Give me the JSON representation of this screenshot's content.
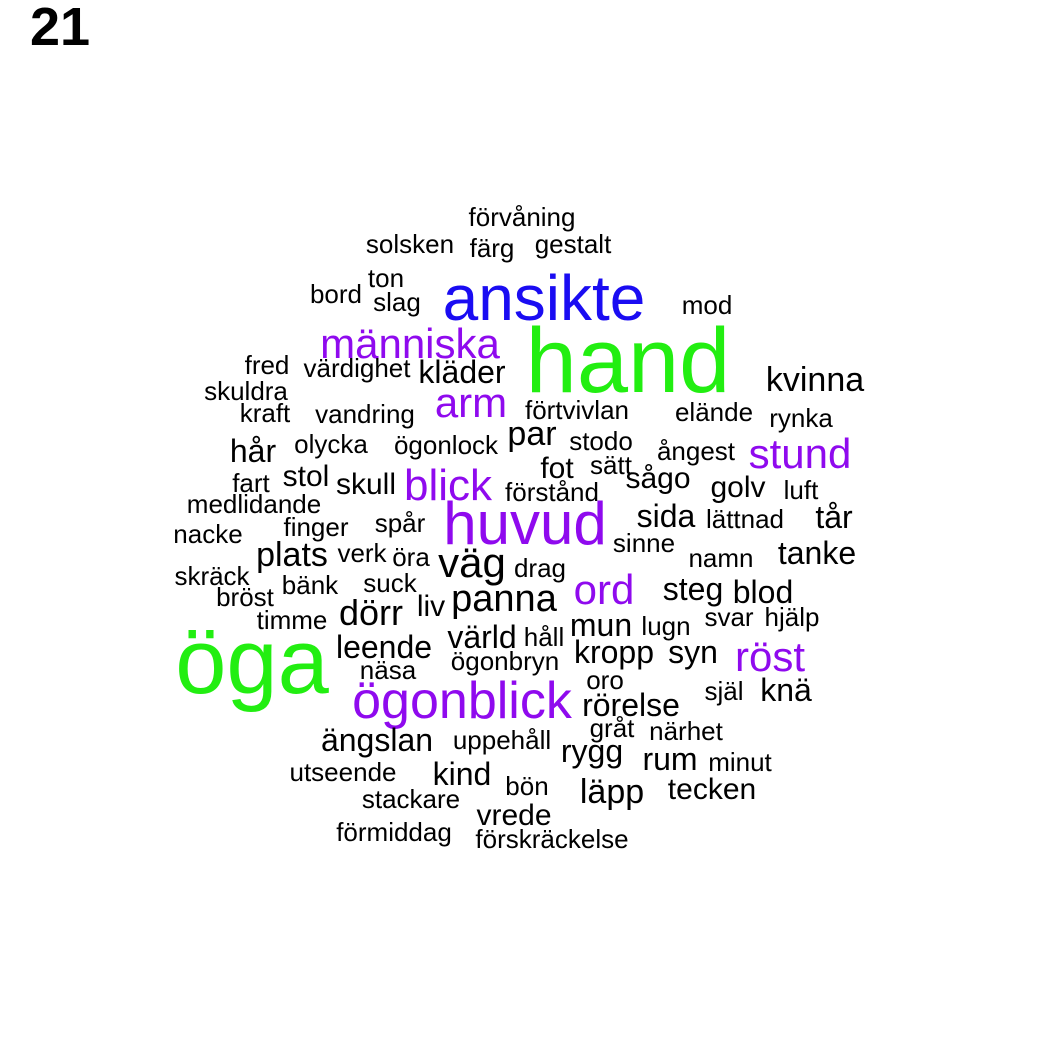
{
  "page_number": "21",
  "colors": {
    "green": "#22ee11",
    "blue": "#1a0cf2",
    "purple": "#8f0aee",
    "black": "#000000"
  },
  "words": [
    {
      "text": "hand",
      "color": "green"
    },
    {
      "text": "öga",
      "color": "green"
    },
    {
      "text": "ansikte",
      "color": "blue"
    },
    {
      "text": "människa",
      "color": "purple"
    },
    {
      "text": "arm",
      "color": "purple"
    },
    {
      "text": "huvud",
      "color": "purple"
    },
    {
      "text": "blick",
      "color": "purple"
    },
    {
      "text": "ögonblick",
      "color": "purple"
    },
    {
      "text": "stund",
      "color": "purple"
    },
    {
      "text": "ord",
      "color": "purple"
    },
    {
      "text": "röst",
      "color": "purple"
    },
    {
      "text": "förvåning",
      "color": "black"
    },
    {
      "text": "solsken",
      "color": "black"
    },
    {
      "text": "färg",
      "color": "black"
    },
    {
      "text": "gestalt",
      "color": "black"
    },
    {
      "text": "ton",
      "color": "black"
    },
    {
      "text": "bord",
      "color": "black"
    },
    {
      "text": "slag",
      "color": "black"
    },
    {
      "text": "mod",
      "color": "black"
    },
    {
      "text": "fred",
      "color": "black"
    },
    {
      "text": "värdighet",
      "color": "black"
    },
    {
      "text": "kläder",
      "color": "black"
    },
    {
      "text": "kvinna",
      "color": "black"
    },
    {
      "text": "skuldra",
      "color": "black"
    },
    {
      "text": "kraft",
      "color": "black"
    },
    {
      "text": "vandring",
      "color": "black"
    },
    {
      "text": "förtvivlan",
      "color": "black"
    },
    {
      "text": "elände",
      "color": "black"
    },
    {
      "text": "rynka",
      "color": "black"
    },
    {
      "text": "par",
      "color": "black"
    },
    {
      "text": "stodo",
      "color": "black"
    },
    {
      "text": "hår",
      "color": "black"
    },
    {
      "text": "olycka",
      "color": "black"
    },
    {
      "text": "ögonlock",
      "color": "black"
    },
    {
      "text": "ångest",
      "color": "black"
    },
    {
      "text": "fot",
      "color": "black"
    },
    {
      "text": "sätt",
      "color": "black"
    },
    {
      "text": "fart",
      "color": "black"
    },
    {
      "text": "stol",
      "color": "black"
    },
    {
      "text": "skull",
      "color": "black"
    },
    {
      "text": "sågo",
      "color": "black"
    },
    {
      "text": "golv",
      "color": "black"
    },
    {
      "text": "luft",
      "color": "black"
    },
    {
      "text": "medlidande",
      "color": "black"
    },
    {
      "text": "förstånd",
      "color": "black"
    },
    {
      "text": "sida",
      "color": "black"
    },
    {
      "text": "lättnad",
      "color": "black"
    },
    {
      "text": "tår",
      "color": "black"
    },
    {
      "text": "nacke",
      "color": "black"
    },
    {
      "text": "finger",
      "color": "black"
    },
    {
      "text": "spår",
      "color": "black"
    },
    {
      "text": "sinne",
      "color": "black"
    },
    {
      "text": "plats",
      "color": "black"
    },
    {
      "text": "verk",
      "color": "black"
    },
    {
      "text": "öra",
      "color": "black"
    },
    {
      "text": "väg",
      "color": "black"
    },
    {
      "text": "namn",
      "color": "black"
    },
    {
      "text": "tanke",
      "color": "black"
    },
    {
      "text": "skräck",
      "color": "black"
    },
    {
      "text": "drag",
      "color": "black"
    },
    {
      "text": "bänk",
      "color": "black"
    },
    {
      "text": "suck",
      "color": "black"
    },
    {
      "text": "steg",
      "color": "black"
    },
    {
      "text": "blod",
      "color": "black"
    },
    {
      "text": "bröst",
      "color": "black"
    },
    {
      "text": "liv",
      "color": "black"
    },
    {
      "text": "panna",
      "color": "black"
    },
    {
      "text": "dörr",
      "color": "black"
    },
    {
      "text": "timme",
      "color": "black"
    },
    {
      "text": "svar",
      "color": "black"
    },
    {
      "text": "hjälp",
      "color": "black"
    },
    {
      "text": "mun",
      "color": "black"
    },
    {
      "text": "lugn",
      "color": "black"
    },
    {
      "text": "värld",
      "color": "black"
    },
    {
      "text": "håll",
      "color": "black"
    },
    {
      "text": "leende",
      "color": "black"
    },
    {
      "text": "kropp",
      "color": "black"
    },
    {
      "text": "syn",
      "color": "black"
    },
    {
      "text": "ögonbryn",
      "color": "black"
    },
    {
      "text": "näsa",
      "color": "black"
    },
    {
      "text": "oro",
      "color": "black"
    },
    {
      "text": "själ",
      "color": "black"
    },
    {
      "text": "knä",
      "color": "black"
    },
    {
      "text": "rörelse",
      "color": "black"
    },
    {
      "text": "gråt",
      "color": "black"
    },
    {
      "text": "närhet",
      "color": "black"
    },
    {
      "text": "ängslan",
      "color": "black"
    },
    {
      "text": "uppehåll",
      "color": "black"
    },
    {
      "text": "rygg",
      "color": "black"
    },
    {
      "text": "rum",
      "color": "black"
    },
    {
      "text": "minut",
      "color": "black"
    },
    {
      "text": "utseende",
      "color": "black"
    },
    {
      "text": "kind",
      "color": "black"
    },
    {
      "text": "bön",
      "color": "black"
    },
    {
      "text": "läpp",
      "color": "black"
    },
    {
      "text": "tecken",
      "color": "black"
    },
    {
      "text": "stackare",
      "color": "black"
    },
    {
      "text": "vrede",
      "color": "black"
    },
    {
      "text": "förmiddag",
      "color": "black"
    },
    {
      "text": "förskräckelse",
      "color": "black"
    }
  ]
}
